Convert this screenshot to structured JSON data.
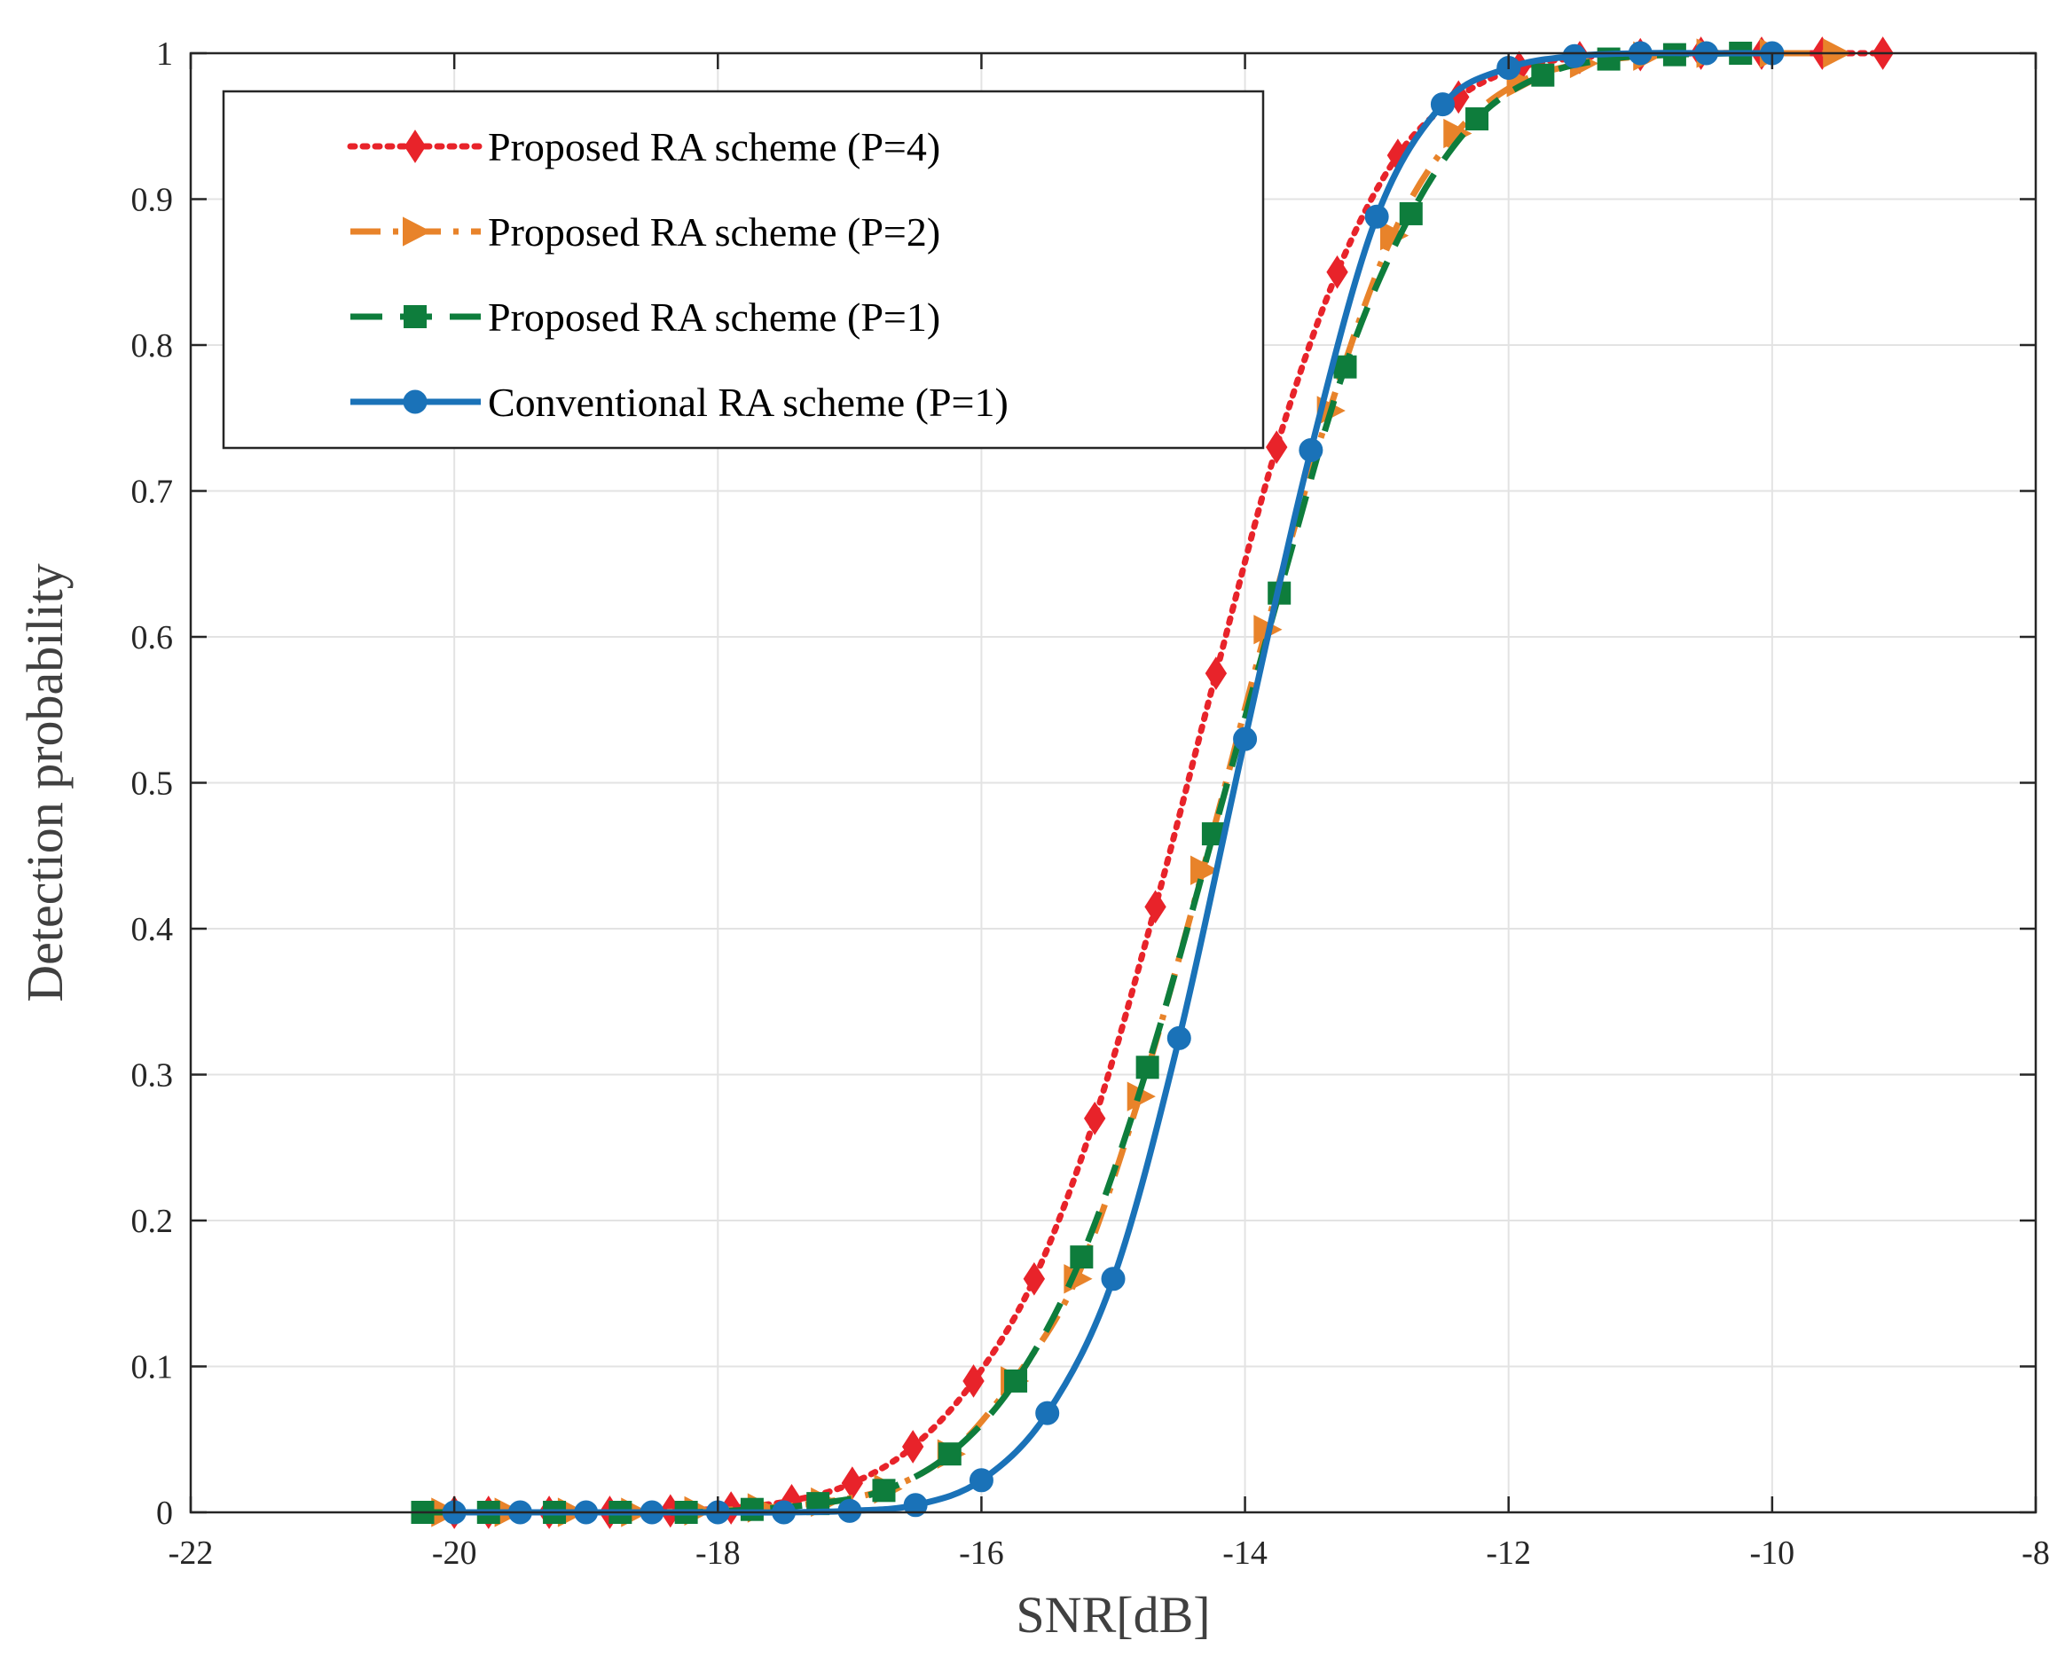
{
  "chart_data": {
    "type": "line",
    "title": "",
    "xlabel": "SNR[dB]",
    "ylabel": "Detection probability",
    "xlim": [
      -22,
      -8
    ],
    "ylim": [
      0,
      1
    ],
    "xticks": [
      -22,
      -20,
      -18,
      -16,
      -14,
      -12,
      -10,
      -8
    ],
    "yticks": [
      0,
      0.1,
      0.2,
      0.3,
      0.4,
      0.5,
      0.6,
      0.7,
      0.8,
      0.9,
      1
    ],
    "xtick_labels": [
      "-22",
      "-20",
      "-18",
      "-16",
      "-14",
      "-12",
      "-10",
      "-8"
    ],
    "ytick_labels": [
      "0",
      "0.1",
      "0.2",
      "0.3",
      "0.4",
      "0.5",
      "0.6",
      "0.7",
      "0.8",
      "0.9",
      "1"
    ],
    "grid": true,
    "legend_position": "top-left",
    "series": [
      {
        "name": "Proposed RA scheme (P=4)",
        "color": "#e8232a",
        "line_style": "dotted",
        "marker": "diamond",
        "x": [
          -20.0,
          -19.74,
          -19.28,
          -18.82,
          -18.36,
          -17.9,
          -17.44,
          -16.98,
          -16.52,
          -16.06,
          -15.6,
          -15.14,
          -14.68,
          -14.22,
          -13.76,
          -13.3,
          -12.84,
          -12.38,
          -11.92,
          -11.46,
          -11.0,
          -10.54,
          -10.08,
          -9.62,
          -9.16
        ],
        "y": [
          0.0,
          0.0,
          0.0,
          0.0,
          0.001,
          0.003,
          0.008,
          0.02,
          0.045,
          0.09,
          0.16,
          0.27,
          0.415,
          0.575,
          0.73,
          0.85,
          0.93,
          0.97,
          0.99,
          0.997,
          0.999,
          1.0,
          1.0,
          1.0,
          1.0
        ]
      },
      {
        "name": "Proposed RA scheme (P=2)",
        "color": "#e8832a",
        "line_style": "dashdot",
        "marker": "triangle-right",
        "x": [
          -20.08,
          -19.6,
          -19.12,
          -18.64,
          -18.16,
          -17.68,
          -17.2,
          -16.72,
          -16.24,
          -15.76,
          -15.28,
          -14.8,
          -14.32,
          -13.84,
          -13.36,
          -12.88,
          -12.4,
          -11.92,
          -11.44,
          -10.96,
          -10.48,
          -10.0,
          -9.52
        ],
        "y": [
          0.0,
          0.0,
          0.0,
          0.0,
          0.001,
          0.003,
          0.007,
          0.016,
          0.04,
          0.09,
          0.16,
          0.285,
          0.44,
          0.605,
          0.755,
          0.875,
          0.945,
          0.98,
          0.993,
          0.998,
          1.0,
          1.0,
          1.0
        ]
      },
      {
        "name": "Proposed RA scheme (P=1)",
        "color": "#0e7d3c",
        "line_style": "dashed",
        "marker": "square",
        "x": [
          -20.24,
          -19.74,
          -19.24,
          -18.74,
          -18.24,
          -17.74,
          -17.24,
          -16.74,
          -16.24,
          -15.74,
          -15.24,
          -14.74,
          -14.24,
          -13.74,
          -13.24,
          -12.74,
          -12.24,
          -11.74,
          -11.24,
          -10.74,
          -10.24
        ],
        "y": [
          0.0,
          0.0,
          0.0,
          0.0,
          0.0,
          0.002,
          0.006,
          0.015,
          0.04,
          0.09,
          0.175,
          0.305,
          0.465,
          0.63,
          0.785,
          0.89,
          0.955,
          0.985,
          0.996,
          0.999,
          1.0
        ]
      },
      {
        "name": "Conventional RA scheme (P=1)",
        "color": "#1a72b8",
        "line_style": "solid",
        "marker": "circle",
        "x": [
          -20.0,
          -19.5,
          -19.0,
          -18.5,
          -18.0,
          -17.5,
          -17.0,
          -16.5,
          -16.0,
          -15.5,
          -15.0,
          -14.5,
          -14.0,
          -13.5,
          -13.0,
          -12.5,
          -12.0,
          -11.5,
          -11.0,
          -10.5,
          -10.0
        ],
        "y": [
          0.0,
          0.0,
          0.0,
          0.0,
          0.0,
          0.0,
          0.001,
          0.005,
          0.022,
          0.068,
          0.16,
          0.325,
          0.53,
          0.728,
          0.888,
          0.965,
          0.99,
          0.998,
          1.0,
          1.0,
          1.0
        ]
      }
    ]
  }
}
